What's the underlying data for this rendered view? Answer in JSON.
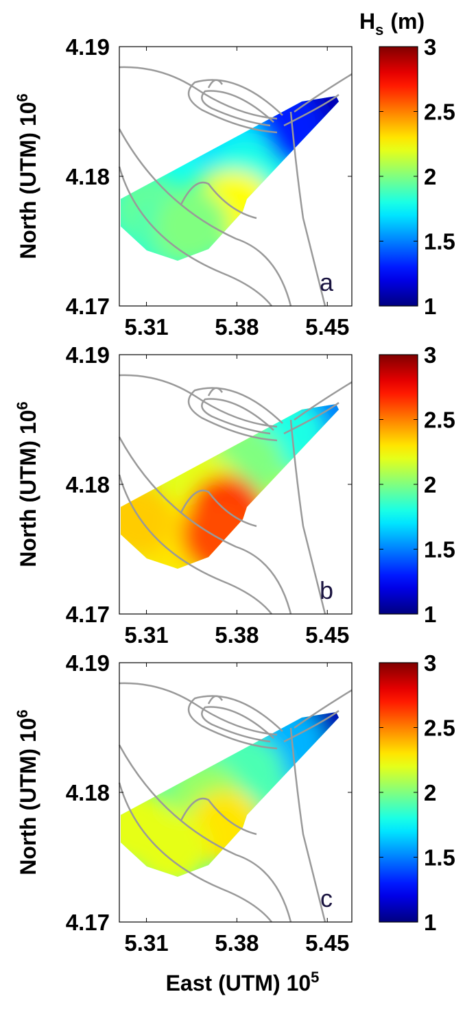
{
  "chart_data": [
    {
      "type": "map",
      "panel_label": "a",
      "colorbar_label": "H",
      "colorbar_label_subscript": "s",
      "colorbar_label_unit": "(m)",
      "ylabel": "North (UTM) 10",
      "ylabel_exponent": "6",
      "xlim": [
        5.289,
        5.469
      ],
      "ylim": [
        4.17,
        4.19
      ],
      "xticks": [
        5.31,
        5.38,
        5.45
      ],
      "yticks": [
        4.17,
        4.18,
        4.19
      ],
      "clim": [
        1,
        3
      ],
      "colorbar_ticks": [
        1,
        1.5,
        2,
        2.5,
        3
      ],
      "points": {
        "x": [
          5.446,
          5.4195,
          5.377,
          5.3876,
          5.3663,
          5.3796,
          5.313,
          5.329,
          5.345
        ],
        "y": [
          4.1851,
          4.1838,
          4.1817,
          4.1798,
          4.1777,
          4.1775,
          4.1773,
          4.1757,
          4.1761
        ],
        "values": [
          1.1,
          1.3,
          1.7,
          1.8,
          2.0,
          2.25,
          1.95,
          1.9,
          2.0
        ]
      }
    },
    {
      "type": "map",
      "panel_label": "b",
      "ylabel": "North (UTM) 10",
      "ylabel_exponent": "6",
      "xlim": [
        5.289,
        5.469
      ],
      "ylim": [
        4.17,
        4.19
      ],
      "xticks": [
        5.31,
        5.38,
        5.45
      ],
      "yticks": [
        4.17,
        4.18,
        4.19
      ],
      "clim": [
        1,
        3
      ],
      "colorbar_ticks": [
        1,
        1.5,
        2,
        2.5,
        3
      ],
      "points": {
        "x": [
          5.446,
          5.4195,
          5.3876,
          5.3556,
          5.3716,
          5.329,
          5.302,
          5.3663
        ],
        "y": [
          4.1851,
          4.1838,
          4.1815,
          4.1794,
          4.1778,
          4.1757,
          4.1773,
          4.1761
        ],
        "values": [
          1.5,
          1.8,
          2.0,
          2.2,
          2.65,
          2.3,
          2.35,
          2.6
        ]
      }
    },
    {
      "type": "map",
      "panel_label": "c",
      "ylabel": "North (UTM) 10",
      "ylabel_exponent": "6",
      "xlabel": "East (UTM) 10",
      "xlabel_exponent": "5",
      "xlim": [
        5.289,
        5.469
      ],
      "ylim": [
        4.17,
        4.19
      ],
      "xticks": [
        5.31,
        5.38,
        5.45
      ],
      "yticks": [
        4.17,
        4.18,
        4.19
      ],
      "clim": [
        1,
        3
      ],
      "colorbar_ticks": [
        1,
        1.5,
        2,
        2.5,
        3
      ],
      "points": {
        "x": [
          5.446,
          5.4195,
          5.3876,
          5.3556,
          5.3716,
          5.329,
          5.302
        ],
        "y": [
          4.1852,
          4.1837,
          4.1815,
          4.1794,
          4.1773,
          4.1757,
          4.1773
        ],
        "values": [
          1.1,
          1.6,
          1.9,
          2.05,
          2.3,
          2.2,
          2.2
        ]
      }
    }
  ]
}
